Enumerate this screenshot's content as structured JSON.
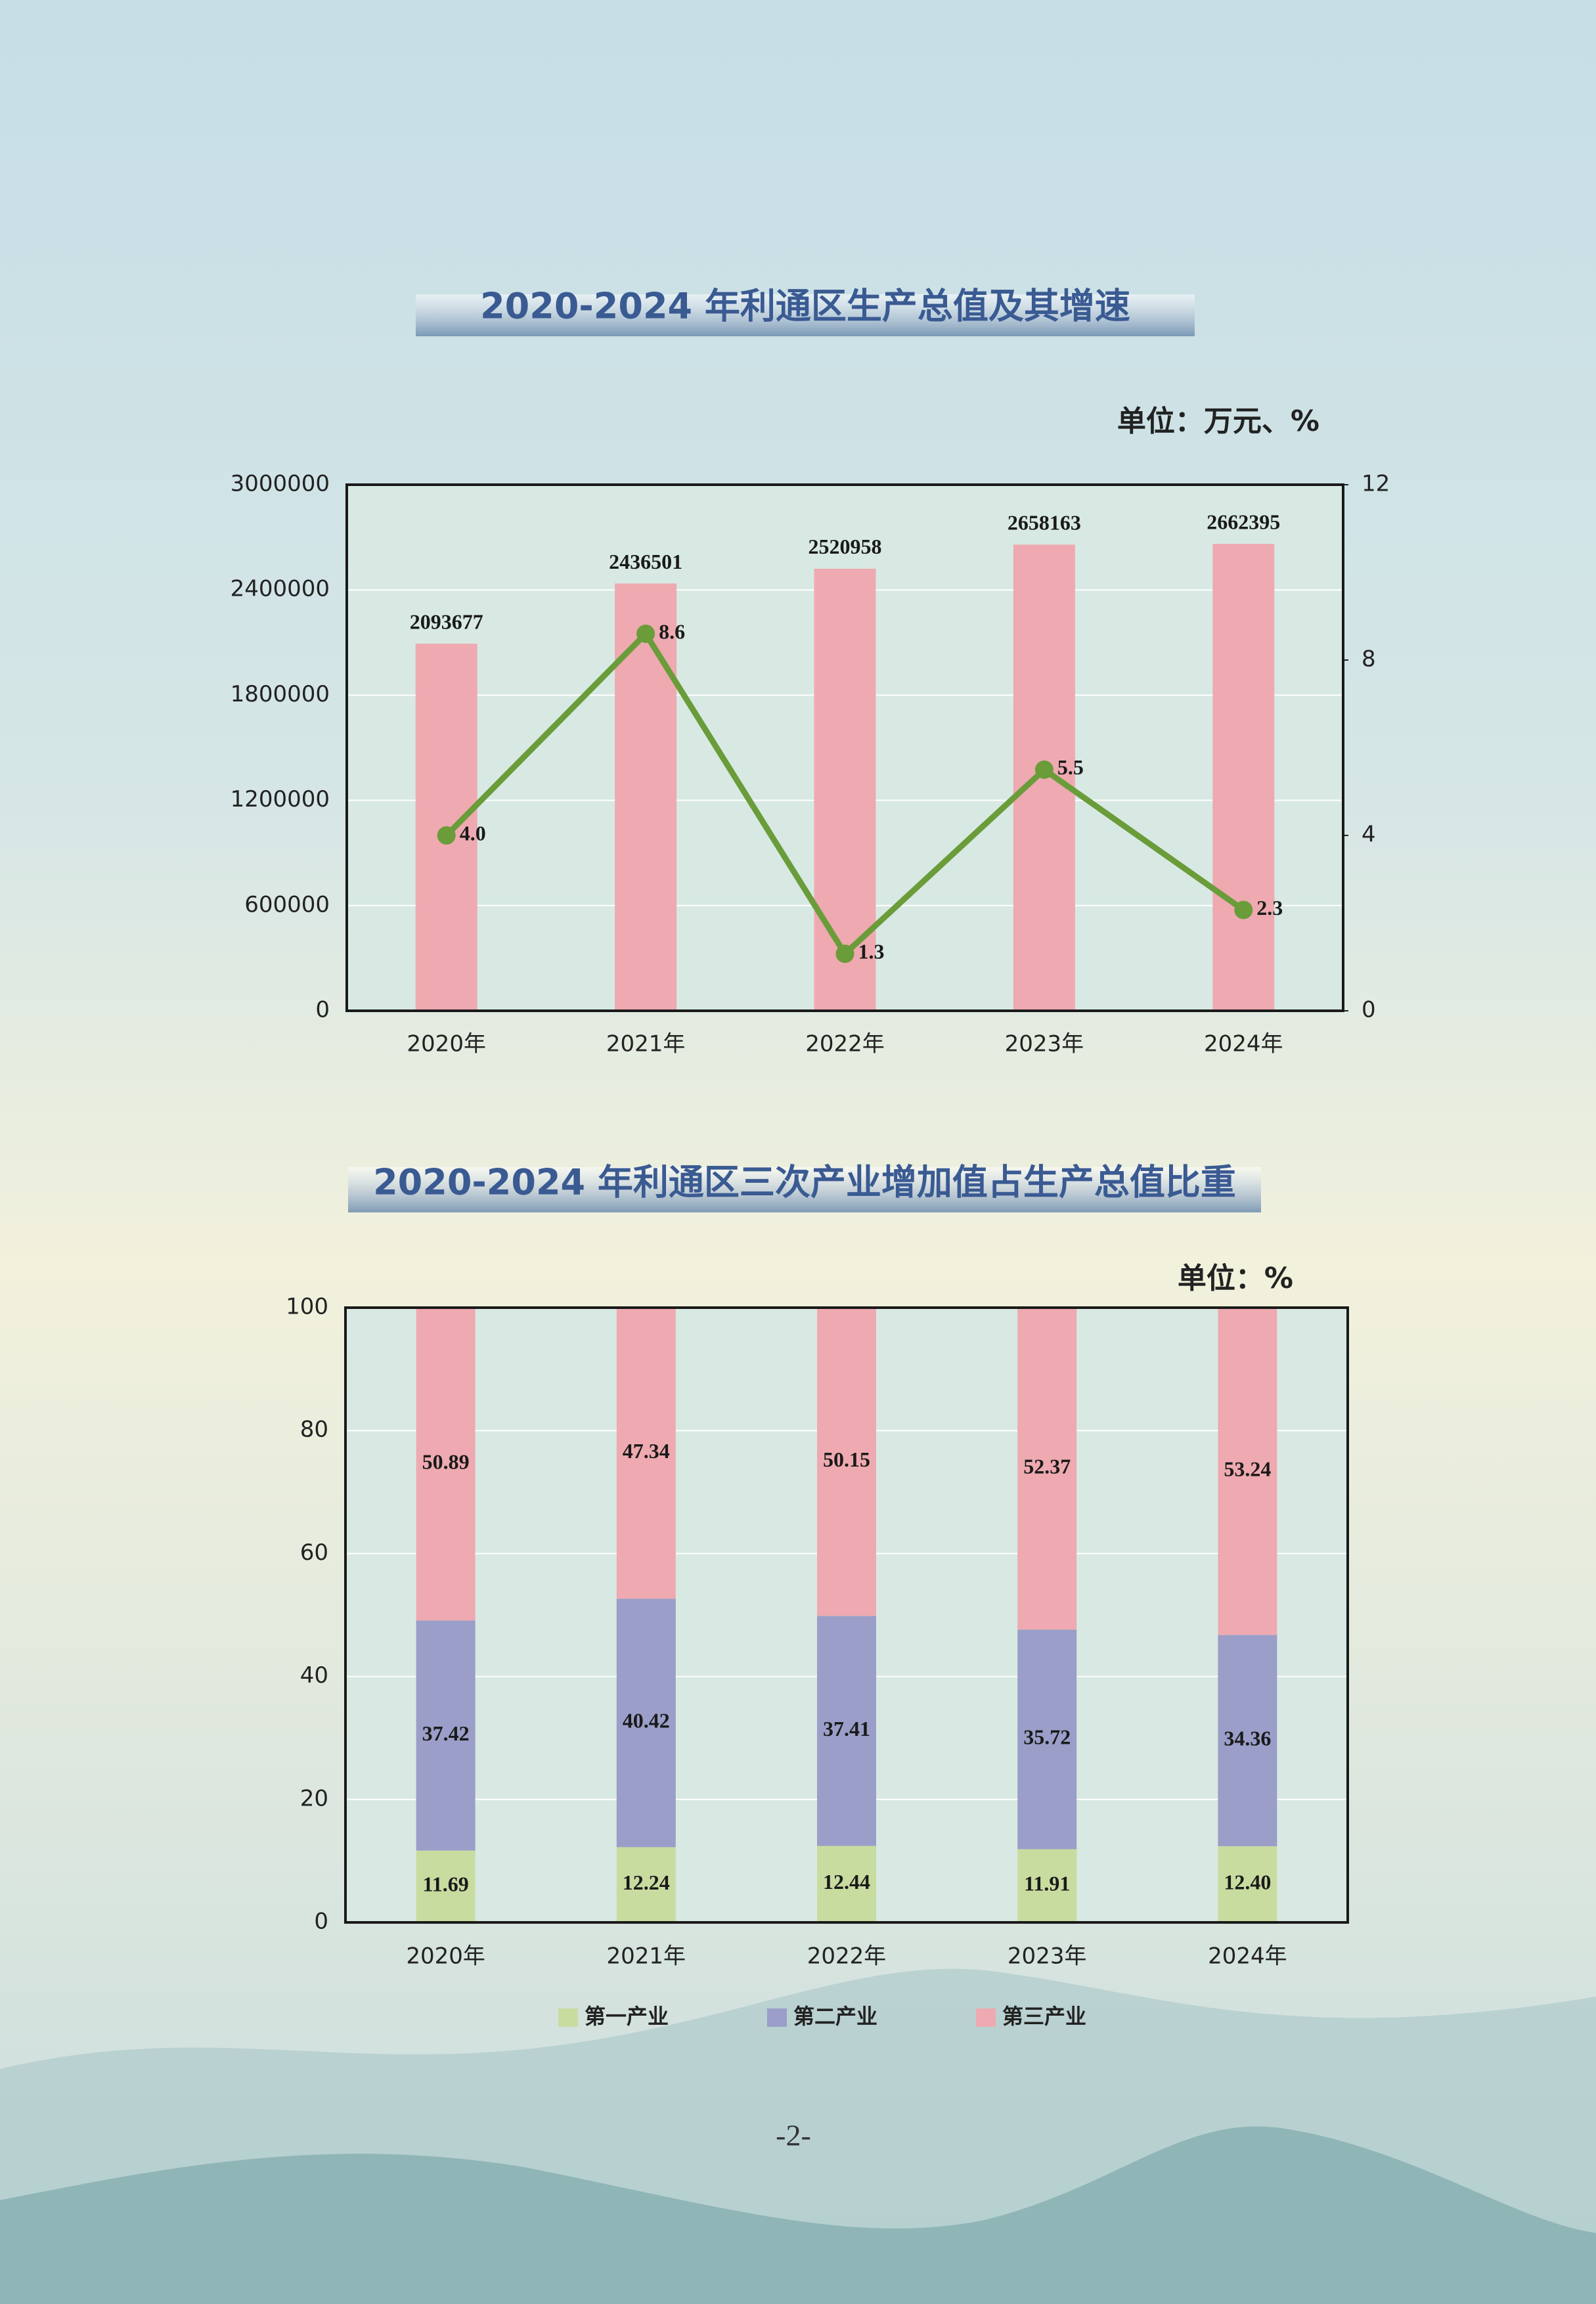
{
  "chart_data": [
    {
      "type": "bar",
      "title": "2020-2024 年利通区生产总值及其增速",
      "unit_label": "单位：万元、%",
      "categories": [
        "2020年",
        "2021年",
        "2022年",
        "2023年",
        "2024年"
      ],
      "series": [
        {
          "type": "bar",
          "color": "#eeaab0",
          "values": [
            2093677,
            2436501,
            2520958,
            2658163,
            2662395
          ]
        },
        {
          "type": "line",
          "axis": "y2",
          "color": "#6a9c3a",
          "values": [
            4.0,
            8.6,
            1.3,
            5.5,
            2.3
          ],
          "value_labels": [
            "4.0",
            "8.6",
            "1.3",
            "5.5",
            "2.3"
          ]
        }
      ],
      "ylim": [
        0,
        3000000
      ],
      "yticks": [
        0,
        600000,
        1200000,
        1800000,
        2400000,
        3000000
      ],
      "y2lim": [
        0,
        12
      ],
      "y2ticks": [
        0,
        4,
        8,
        12
      ],
      "grid": true
    },
    {
      "type": "stacked_bar",
      "title": "2020-2024 年利通区三次产业增加值占生产总值比重",
      "unit_label": "单位：%",
      "categories": [
        "2020年",
        "2021年",
        "2022年",
        "2023年",
        "2024年"
      ],
      "series": [
        {
          "name": "第一产业",
          "color": "#c9dca0",
          "values": [
            11.69,
            12.24,
            12.44,
            11.91,
            12.4
          ],
          "value_labels": [
            "11.69",
            "12.24",
            "12.44",
            "11.91",
            "12.40"
          ]
        },
        {
          "name": "第二产业",
          "color": "#9a9ec8",
          "values": [
            37.42,
            40.42,
            37.41,
            35.72,
            34.36
          ]
        },
        {
          "name": "第三产业",
          "color": "#eeaab0",
          "values": [
            50.89,
            47.34,
            50.15,
            52.37,
            53.24
          ]
        }
      ],
      "ylim": [
        0,
        100
      ],
      "yticks": [
        0,
        20,
        40,
        60,
        80,
        100
      ],
      "grid": true,
      "legend": "bottom"
    }
  ],
  "page_number": "-2-"
}
